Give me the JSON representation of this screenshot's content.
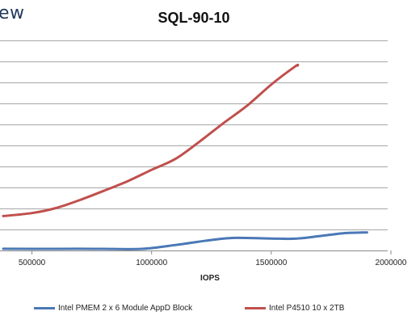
{
  "logo_text": "ew",
  "chart_data": {
    "type": "line",
    "title": "SQL-90-10",
    "xlabel": "IOPS",
    "ylabel": "",
    "xlim": [
      380000,
      2000000
    ],
    "x_ticks": [
      500000,
      1000000,
      1500000,
      2000000
    ],
    "x_tick_labels": [
      "500000",
      "1000000",
      "1500000",
      "2000000"
    ],
    "y_gridlines": 11,
    "grid": true,
    "legend": "bottom",
    "series": [
      {
        "name": "Intel PMEM 2 x 6 Module AppD Block",
        "color": "#4a78b6",
        "points": [
          [
            380000,
            0.4
          ],
          [
            500000,
            0.38
          ],
          [
            700000,
            0.4
          ],
          [
            800000,
            0.38
          ],
          [
            960000,
            0.38
          ],
          [
            1100000,
            1.3
          ],
          [
            1250000,
            2.5
          ],
          [
            1350000,
            3.0
          ],
          [
            1500000,
            2.85
          ],
          [
            1600000,
            2.8
          ],
          [
            1700000,
            3.4
          ],
          [
            1800000,
            4.1
          ],
          [
            1900000,
            4.3
          ]
        ]
      },
      {
        "name": "Intel P4510 10 x 2TB",
        "color": "#c0504d",
        "points": [
          [
            380000,
            8.2
          ],
          [
            500000,
            8.9
          ],
          [
            600000,
            10.1
          ],
          [
            700000,
            12.0
          ],
          [
            800000,
            14.2
          ],
          [
            900000,
            16.5
          ],
          [
            1000000,
            19.2
          ],
          [
            1100000,
            21.8
          ],
          [
            1200000,
            25.9
          ],
          [
            1300000,
            30.3
          ],
          [
            1400000,
            34.5
          ],
          [
            1500000,
            39.5
          ],
          [
            1600000,
            43.8
          ],
          [
            1610000,
            44.0
          ]
        ]
      }
    ],
    "y_range": [
      0,
      50
    ]
  }
}
